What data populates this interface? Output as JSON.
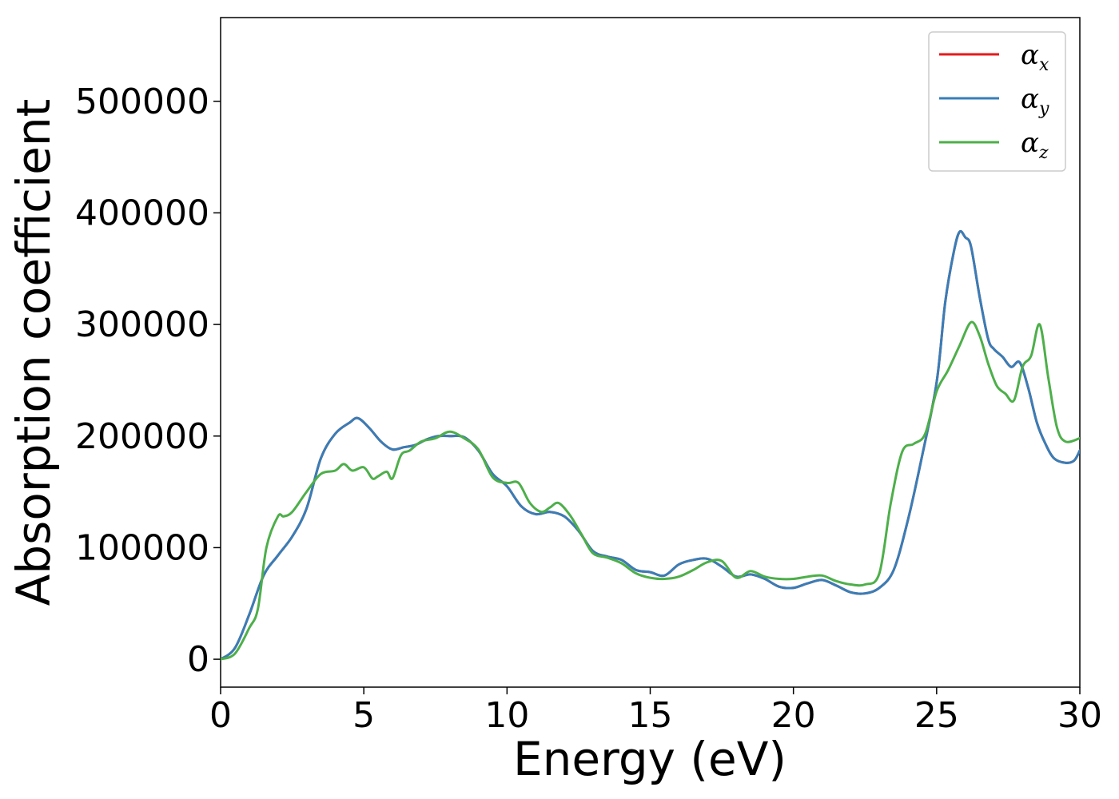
{
  "chart_data": {
    "type": "line",
    "title": "",
    "xlabel": "Energy (eV)",
    "ylabel": "Absorption coefficient",
    "xlim": [
      0,
      30
    ],
    "ylim": [
      -25000,
      575000
    ],
    "xticks": [
      0,
      5,
      10,
      15,
      20,
      25,
      30
    ],
    "yticks": [
      0,
      100000,
      200000,
      300000,
      400000,
      500000
    ],
    "grid": false,
    "legend_position": "top-right",
    "series": [
      {
        "name_symbol": "α",
        "name_sub": "x",
        "color": "#e41a1c",
        "x": [
          0,
          0.5,
          1.0,
          1.5,
          2.0,
          2.5,
          3.0,
          3.5,
          4.0,
          4.5,
          4.8,
          5.2,
          5.6,
          6.0,
          6.4,
          6.8,
          7.2,
          7.6,
          8.0,
          8.5,
          9.0,
          9.5,
          10.0,
          10.5,
          11.0,
          11.5,
          12.0,
          12.5,
          13.0,
          13.5,
          14.0,
          14.5,
          15.0,
          15.5,
          16.0,
          16.5,
          17.0,
          17.5,
          18.0,
          18.5,
          19.0,
          19.5,
          20.0,
          20.5,
          21.0,
          21.5,
          22.0,
          22.5,
          23.0,
          23.5,
          24.0,
          24.5,
          25.0,
          25.3,
          25.6,
          25.8,
          26.0,
          26.2,
          26.5,
          26.8,
          27.0,
          27.3,
          27.6,
          27.9,
          28.2,
          28.5,
          28.8,
          29.1,
          29.5,
          29.8,
          30.0
        ],
        "y": [
          0,
          10000,
          40000,
          75000,
          93000,
          110000,
          135000,
          180000,
          202000,
          212000,
          216000,
          207000,
          195000,
          188000,
          190000,
          192000,
          197000,
          200000,
          200000,
          199000,
          187000,
          166000,
          155000,
          137000,
          130000,
          132000,
          128000,
          115000,
          97000,
          92000,
          89000,
          80000,
          78000,
          75000,
          85000,
          89000,
          90000,
          83000,
          74000,
          76000,
          72000,
          65000,
          64000,
          68000,
          71000,
          66000,
          60000,
          59000,
          64000,
          80000,
          125000,
          183000,
          248000,
          320000,
          365000,
          383000,
          378000,
          370000,
          325000,
          287000,
          278000,
          271000,
          262000,
          266000,
          243000,
          212000,
          193000,
          180000,
          176000,
          178000,
          187000
        ]
      },
      {
        "name_symbol": "α",
        "name_sub": "y",
        "color": "#377eb8",
        "x": [
          0,
          0.5,
          1.0,
          1.5,
          2.0,
          2.5,
          3.0,
          3.5,
          4.0,
          4.5,
          4.8,
          5.2,
          5.6,
          6.0,
          6.4,
          6.8,
          7.2,
          7.6,
          8.0,
          8.5,
          9.0,
          9.5,
          10.0,
          10.5,
          11.0,
          11.5,
          12.0,
          12.5,
          13.0,
          13.5,
          14.0,
          14.5,
          15.0,
          15.5,
          16.0,
          16.5,
          17.0,
          17.5,
          18.0,
          18.5,
          19.0,
          19.5,
          20.0,
          20.5,
          21.0,
          21.5,
          22.0,
          22.5,
          23.0,
          23.5,
          24.0,
          24.5,
          25.0,
          25.3,
          25.6,
          25.8,
          26.0,
          26.2,
          26.5,
          26.8,
          27.0,
          27.3,
          27.6,
          27.9,
          28.2,
          28.5,
          28.8,
          29.1,
          29.5,
          29.8,
          30.0
        ],
        "y": [
          0,
          10000,
          40000,
          75000,
          93000,
          110000,
          135000,
          180000,
          202000,
          212000,
          216000,
          207000,
          195000,
          188000,
          190000,
          192000,
          197000,
          200000,
          200000,
          199000,
          187000,
          166000,
          155000,
          137000,
          130000,
          132000,
          128000,
          115000,
          97000,
          92000,
          89000,
          80000,
          78000,
          75000,
          85000,
          89000,
          90000,
          83000,
          74000,
          76000,
          72000,
          65000,
          64000,
          68000,
          71000,
          66000,
          60000,
          59000,
          64000,
          80000,
          125000,
          183000,
          248000,
          320000,
          365000,
          383000,
          378000,
          370000,
          325000,
          287000,
          278000,
          271000,
          262000,
          266000,
          243000,
          212000,
          193000,
          180000,
          176000,
          178000,
          187000
        ]
      },
      {
        "name_symbol": "α",
        "name_sub": "z",
        "color": "#4daf4a",
        "x": [
          0,
          0.5,
          1.0,
          1.3,
          1.6,
          2.0,
          2.2,
          2.5,
          3.0,
          3.5,
          4.0,
          4.3,
          4.6,
          5.0,
          5.3,
          5.5,
          5.8,
          6.0,
          6.3,
          6.6,
          7.0,
          7.5,
          8.0,
          8.5,
          9.0,
          9.5,
          10.0,
          10.4,
          10.8,
          11.2,
          11.5,
          11.8,
          12.2,
          12.6,
          13.0,
          13.5,
          14.0,
          14.5,
          15.0,
          15.5,
          16.0,
          16.5,
          17.0,
          17.5,
          18.0,
          18.5,
          19.0,
          19.5,
          20.0,
          20.5,
          21.0,
          21.5,
          22.0,
          22.5,
          23.0,
          23.4,
          23.8,
          24.2,
          24.6,
          25.0,
          25.4,
          25.8,
          26.2,
          26.5,
          26.8,
          27.1,
          27.4,
          27.7,
          28.0,
          28.3,
          28.6,
          28.9,
          29.2,
          29.5,
          30.0
        ],
        "y": [
          0,
          5000,
          28000,
          45000,
          100000,
          128000,
          128000,
          132000,
          150000,
          166000,
          169000,
          175000,
          169000,
          172000,
          162000,
          164000,
          168000,
          162000,
          183000,
          187000,
          195000,
          198000,
          204000,
          198000,
          188000,
          163000,
          158000,
          158000,
          140000,
          132000,
          136000,
          140000,
          129000,
          112000,
          95000,
          91000,
          86000,
          77000,
          73000,
          72000,
          74000,
          80000,
          87000,
          88000,
          73000,
          79000,
          74000,
          72000,
          72000,
          74000,
          75000,
          70000,
          67000,
          67000,
          77000,
          140000,
          186000,
          193000,
          202000,
          240000,
          259000,
          281000,
          302000,
          290000,
          265000,
          245000,
          238000,
          232000,
          262000,
          272000,
          300000,
          252000,
          208000,
          195000,
          198000
        ]
      }
    ]
  }
}
